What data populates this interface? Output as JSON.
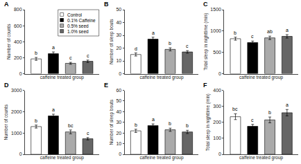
{
  "chart_data": [
    {
      "type": "bar",
      "title": "A",
      "xlabel": "caffeine treated group",
      "ylabel": "Number of counts",
      "categories": [
        "Control",
        "0.1% Caffeine",
        "0.5% seed",
        "1.0% seed"
      ],
      "values": [
        185,
        250,
        130,
        155
      ],
      "errors": [
        18,
        22,
        12,
        15
      ],
      "annotations": [
        "b",
        "a",
        "c",
        "c"
      ],
      "colors": [
        "#ffffff",
        "#000000",
        "#aaaaaa",
        "#666666"
      ],
      "ylim": [
        0,
        800
      ],
      "yticks": [
        0,
        200,
        400,
        600,
        800
      ],
      "grid": false,
      "tick_labels": "y",
      "legend": "upper right"
    },
    {
      "type": "bar",
      "title": "B",
      "xlabel": "caffeine treated group",
      "ylabel": "Number of sleep bouts",
      "categories": [
        "Control",
        "0.1% Caffeine",
        "0.5% seed",
        "1.0% seed"
      ],
      "values": [
        15,
        27,
        19,
        17
      ],
      "errors": [
        1.2,
        1.5,
        1.2,
        1.0
      ],
      "annotations": [
        "d",
        "a",
        "b",
        "c"
      ],
      "colors": [
        "#ffffff",
        "#000000",
        "#aaaaaa",
        "#666666"
      ],
      "ylim": [
        0,
        50
      ],
      "yticks": [
        0,
        10,
        20,
        30,
        40,
        50
      ],
      "grid": false,
      "tick_labels": "y"
    },
    {
      "type": "bar",
      "title": "C",
      "xlabel": "caffeine treated group",
      "ylabel": "Total sleep in nighttime (min)",
      "categories": [
        "Control",
        "0.1% Caffeine",
        "0.5% seed",
        "1.0% seed"
      ],
      "values": [
        820,
        730,
        840,
        875
      ],
      "errors": [
        35,
        35,
        40,
        40
      ],
      "annotations": [
        "b",
        "c",
        "ab",
        "a"
      ],
      "colors": [
        "#ffffff",
        "#000000",
        "#aaaaaa",
        "#666666"
      ],
      "ylim": [
        0,
        1500
      ],
      "yticks": [
        0,
        500,
        1000,
        1500
      ],
      "grid": false,
      "tick_labels": "y"
    },
    {
      "type": "bar",
      "title": "D",
      "xlabel": "caffeine treated group",
      "ylabel": "Number of counts",
      "categories": [
        "Control",
        "0.1% Caffeine",
        "0.5% seed",
        "1.0% seed"
      ],
      "values": [
        1300,
        1800,
        1050,
        730
      ],
      "errors": [
        70,
        80,
        90,
        55
      ],
      "annotations": [
        "b",
        "a",
        "bc",
        "c"
      ],
      "colors": [
        "#ffffff",
        "#000000",
        "#aaaaaa",
        "#666666"
      ],
      "ylim": [
        0,
        3000
      ],
      "yticks": [
        0,
        1000,
        2000,
        3000
      ],
      "grid": false,
      "tick_labels": "y"
    },
    {
      "type": "bar",
      "title": "E",
      "xlabel": "caffeine treated group",
      "ylabel": "Number of sleep bouts",
      "categories": [
        "Control",
        "0.1% Caffeine",
        "0.5% seed",
        "1.0% seed"
      ],
      "values": [
        22,
        27,
        23,
        21
      ],
      "errors": [
        1.5,
        1.5,
        1.5,
        1.5
      ],
      "annotations": [
        "b",
        "a",
        "b",
        "b"
      ],
      "colors": [
        "#ffffff",
        "#000000",
        "#aaaaaa",
        "#666666"
      ],
      "ylim": [
        0,
        60
      ],
      "yticks": [
        0,
        10,
        20,
        30,
        40,
        50,
        60
      ],
      "grid": false,
      "tick_labels": "y"
    },
    {
      "type": "bar",
      "title": "F",
      "xlabel": "caffeine treated group",
      "ylabel": "Total sleep in nighttime (min)",
      "categories": [
        "Control",
        "0.1% Caffeine",
        "0.5% seed",
        "1.0% seed"
      ],
      "values": [
        235,
        175,
        215,
        260
      ],
      "errors": [
        18,
        12,
        18,
        20
      ],
      "annotations": [
        "bc",
        "c",
        "b",
        "a"
      ],
      "colors": [
        "#ffffff",
        "#000000",
        "#aaaaaa",
        "#666666"
      ],
      "ylim": [
        0,
        400
      ],
      "yticks": [
        0,
        100,
        200,
        300,
        400
      ],
      "grid": false,
      "tick_labels": "y"
    }
  ]
}
